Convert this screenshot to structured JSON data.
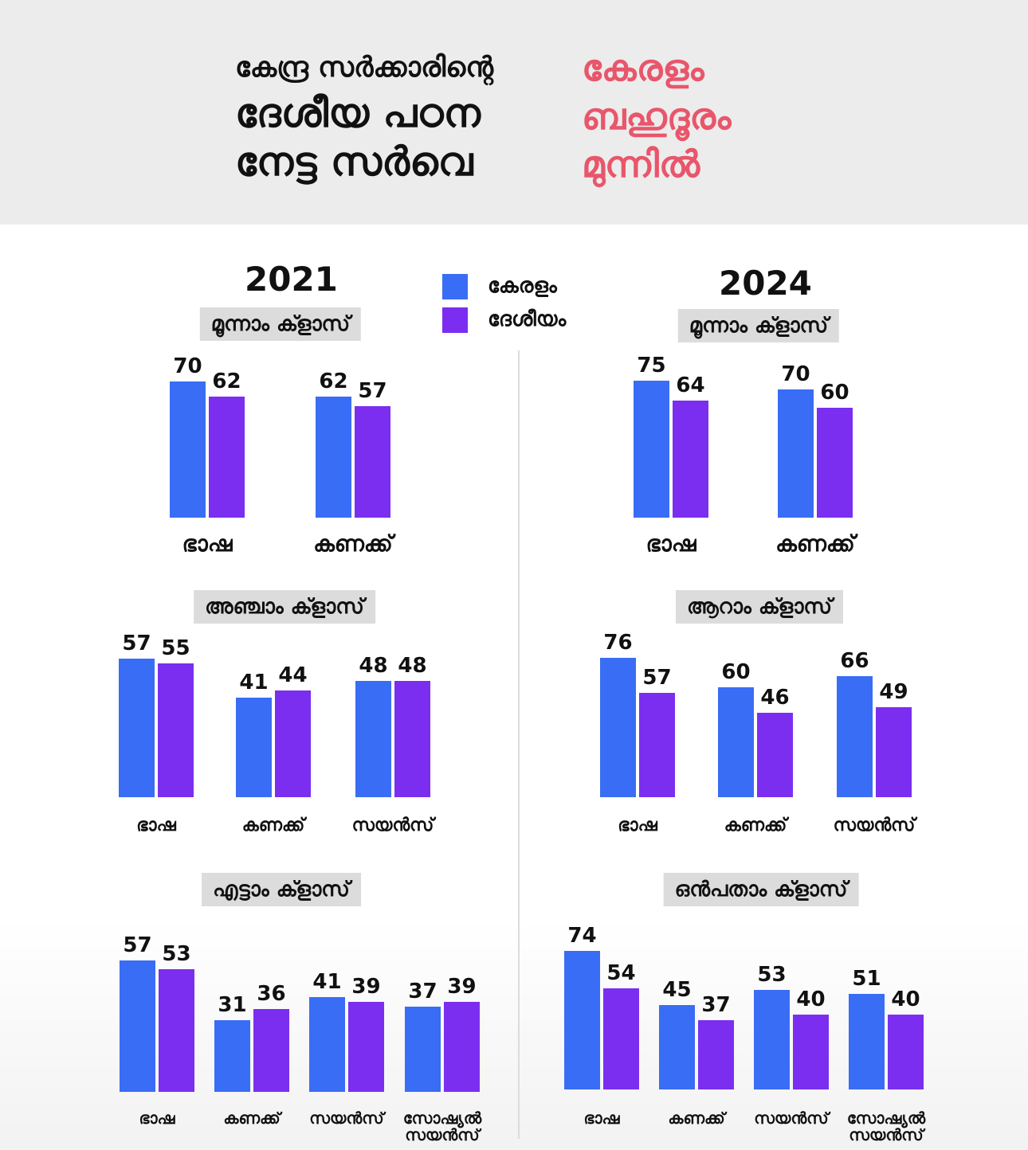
{
  "header": {
    "black_lines": [
      "കേന്ദ്ര സർക്കാരിന്റെ",
      "ദേശീയ പഠന",
      "നേട്ട സർവെ"
    ],
    "pink_lines": [
      "കേരളം",
      "ബഹുദൂരം",
      "മുന്നിൽ"
    ],
    "colors": {
      "black": "#111111",
      "pink": "#e8566b"
    }
  },
  "legend": [
    {
      "label": "കേരളം",
      "color": "#3a6df5"
    },
    {
      "label": "ദേശീയം",
      "color": "#7b2ef0"
    }
  ],
  "chart_data": [
    {
      "type": "bar",
      "year": "2021",
      "title": "മൂന്നാം ക്ളാസ്",
      "categories": [
        "ഭാഷ",
        "കണക്ക്"
      ],
      "series": [
        {
          "name": "കേരളം",
          "values": [
            70,
            62
          ]
        },
        {
          "name": "ദേശീയം",
          "values": [
            62,
            57
          ]
        }
      ]
    },
    {
      "type": "bar",
      "year": "2024",
      "title": "മൂന്നാം ക്ളാസ്",
      "categories": [
        "ഭാഷ",
        "കണക്ക്"
      ],
      "series": [
        {
          "name": "കേരളം",
          "values": [
            75,
            70
          ]
        },
        {
          "name": "ദേശീയം",
          "values": [
            64,
            60
          ]
        }
      ]
    },
    {
      "type": "bar",
      "year": "2021",
      "title": "അഞ്ചാം ക്ളാസ്",
      "categories": [
        "ഭാഷ",
        "കണക്ക്",
        "സയൻസ്"
      ],
      "series": [
        {
          "name": "കേരളം",
          "values": [
            57,
            41,
            48
          ]
        },
        {
          "name": "ദേശീയം",
          "values": [
            55,
            44,
            48
          ]
        }
      ]
    },
    {
      "type": "bar",
      "year": "2024",
      "title": "ആറാം ക്ളാസ്",
      "categories": [
        "ഭാഷ",
        "കണക്ക്",
        "സയൻസ്"
      ],
      "series": [
        {
          "name": "കേരളം",
          "values": [
            76,
            60,
            66
          ]
        },
        {
          "name": "ദേശീയം",
          "values": [
            57,
            46,
            49
          ]
        }
      ]
    },
    {
      "type": "bar",
      "year": "2021",
      "title": "എട്ടാം ക്ളാസ്",
      "categories": [
        "ഭാഷ",
        "കണക്ക്",
        "സയൻസ്",
        "സോഷ്യൽ\nസയൻസ്"
      ],
      "series": [
        {
          "name": "കേരളം",
          "values": [
            57,
            31,
            41,
            37
          ]
        },
        {
          "name": "ദേശീയം",
          "values": [
            53,
            36,
            39,
            39
          ]
        }
      ]
    },
    {
      "type": "bar",
      "year": "2024",
      "title": "ഒൻപതാം ക്ളാസ്",
      "categories": [
        "ഭാഷ",
        "കണക്ക്",
        "സയൻസ്",
        "സോഷ്യൽ\nസയൻസ്"
      ],
      "series": [
        {
          "name": "കേരളം",
          "values": [
            74,
            45,
            53,
            51
          ]
        },
        {
          "name": "ദേശീയം",
          "values": [
            54,
            37,
            40,
            40
          ]
        }
      ]
    }
  ]
}
